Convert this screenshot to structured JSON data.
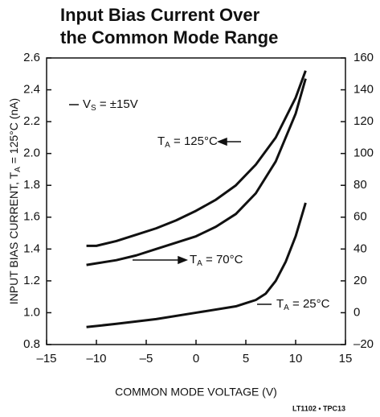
{
  "chart_data": {
    "type": "line",
    "title": [
      "Input Bias Current Over",
      "the Common Mode Range"
    ],
    "xlabel": "COMMON MODE VOLTAGE (V)",
    "ylabel": [
      "INPUT BIAS CURRENT, T",
      "A",
      " = 125°C (nA)"
    ],
    "footer": "LT1102 • TPC13",
    "annotation": [
      "V",
      "S",
      " = ±15V"
    ],
    "xlim": [
      -15,
      15
    ],
    "xticks": [
      {
        "value": -15,
        "label": "–15"
      },
      {
        "value": -10,
        "label": "–10"
      },
      {
        "value": -5,
        "label": "–5"
      },
      0,
      5,
      10,
      15
    ],
    "ylim": [
      0.8,
      2.6
    ],
    "yticks": [
      0.8,
      {
        "value": 1,
        "label": "1.0"
      },
      1.2,
      1.4,
      1.6,
      1.8,
      {
        "value": 2,
        "label": "2.0"
      },
      2.2,
      2.4,
      2.6
    ],
    "y2lim": [
      -20,
      160
    ],
    "y2ticks": [
      {
        "value": -20,
        "label": "–20"
      },
      0,
      20,
      40,
      60,
      80,
      100,
      120,
      140,
      160
    ],
    "series": [
      {
        "name": [
          "T",
          "A",
          " = 125°C"
        ],
        "color": "#111111",
        "axis": "y",
        "x": [
          -11,
          -10,
          -8,
          -6,
          -4,
          -2,
          0,
          2,
          4,
          6,
          8,
          10,
          11
        ],
        "values": [
          1.42,
          1.42,
          1.45,
          1.49,
          1.53,
          1.58,
          1.64,
          1.71,
          1.8,
          1.93,
          2.1,
          2.35,
          2.52
        ]
      },
      {
        "name": [
          "T",
          "A",
          " = 70°C"
        ],
        "color": "#111111",
        "axis": "y2",
        "x": [
          -11,
          -10,
          -8,
          -6,
          -4,
          -2,
          0,
          2,
          4,
          6,
          8,
          10,
          11
        ],
        "values": [
          30,
          31,
          33,
          36,
          40,
          44,
          48,
          54,
          62,
          75,
          95,
          125,
          147
        ]
      },
      {
        "name": [
          "T",
          "A",
          " = 25°C"
        ],
        "color": "#111111",
        "axis": "y2",
        "x": [
          -11,
          -8,
          -4,
          0,
          4,
          5,
          6,
          7,
          8,
          9,
          10,
          11
        ],
        "values": [
          -9,
          -7,
          -4,
          0,
          4,
          6,
          8,
          12,
          20,
          32,
          48,
          69
        ]
      }
    ]
  }
}
